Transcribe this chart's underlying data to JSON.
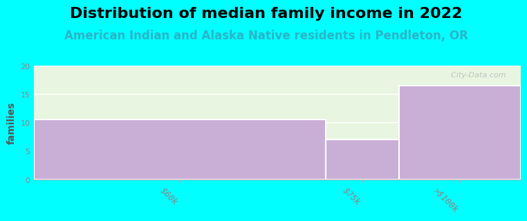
{
  "title": "Distribution of median family income in 2022",
  "subtitle": "American Indian and Alaska Native residents in Pendleton, OR",
  "categories": [
    "$60k",
    "$75k",
    ">$100k"
  ],
  "values": [
    10.5,
    7,
    16.5
  ],
  "bar_color": "#c9aed6",
  "background_outer": "#00ffff",
  "background_inner_top": "#e8f5e0",
  "background_inner_bottom": "#f0f8f0",
  "ylabel": "families",
  "ylim": [
    0,
    20
  ],
  "yticks": [
    0,
    5,
    10,
    15,
    20
  ],
  "title_fontsize": 16,
  "subtitle_fontsize": 12,
  "subtitle_color": "#2ab5c8",
  "watermark": "  City-Data.com",
  "title_fontweight": "bold",
  "bar_edges": [
    0,
    60,
    75,
    100
  ],
  "tick_label_rotation": -45,
  "tick_label_color": "#888888"
}
